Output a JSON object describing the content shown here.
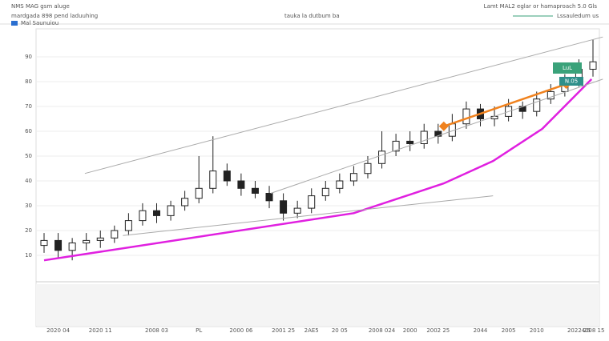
{
  "header": {
    "title": "NMS MAG gsm aluge",
    "subtitle": "mardgada 898 pend laduuhing",
    "center": "tauka la dutbum ba",
    "right": "Lamt MAL2 eglar or hamaproach 5.0 Gls",
    "legend_1": "Lssauledum us",
    "legend_2": "Mal Saunuiou"
  },
  "price_tags": [
    "LuL",
    "N.05"
  ],
  "chart_data": {
    "type": "candlestick",
    "categories": [
      null,
      "2020 04",
      null,
      null,
      "2020 11",
      null,
      null,
      null,
      "2008 03",
      null,
      null,
      "PL",
      null,
      null,
      "2000 06",
      null,
      null,
      "2001 25",
      null,
      "2AE5",
      null,
      "20 05",
      null,
      null,
      "2008 024",
      null,
      "2000",
      null,
      "2002 25",
      null,
      null,
      "2044",
      null,
      "2005",
      null,
      "2010",
      null,
      null,
      "2022 25",
      "4008 15"
    ],
    "open": [
      14,
      16,
      12,
      15,
      16,
      17,
      20,
      24,
      28,
      26,
      30,
      33,
      37,
      44,
      40,
      37,
      35,
      32,
      27,
      29,
      34,
      37,
      40,
      43,
      47,
      52,
      56,
      55,
      60,
      58,
      63,
      69,
      65,
      66,
      70,
      68,
      73,
      76,
      80,
      85
    ],
    "high": [
      19,
      19,
      17,
      19,
      20,
      22,
      27,
      31,
      31,
      32,
      36,
      50,
      58,
      47,
      43,
      40,
      38,
      35,
      32,
      37,
      40,
      43,
      46,
      50,
      60,
      59,
      60,
      63,
      63,
      67,
      72,
      71,
      70,
      73,
      72,
      76,
      79,
      83,
      89,
      97
    ],
    "low": [
      11,
      9,
      8,
      12,
      13,
      15,
      18,
      22,
      23,
      24,
      28,
      31,
      35,
      38,
      34,
      33,
      29,
      24,
      25,
      27,
      32,
      35,
      38,
      41,
      45,
      50,
      52,
      53,
      55,
      56,
      61,
      62,
      62,
      64,
      65,
      66,
      71,
      74,
      78,
      82
    ],
    "close": [
      16,
      12,
      15,
      16,
      17,
      20,
      24,
      28,
      26,
      30,
      33,
      37,
      44,
      40,
      37,
      35,
      32,
      27,
      29,
      34,
      37,
      40,
      43,
      47,
      52,
      56,
      55,
      60,
      58,
      63,
      69,
      65,
      66,
      70,
      68,
      73,
      76,
      80,
      85,
      88
    ],
    "up_color": "#ffffff",
    "down_color": "#222222",
    "wick_color": "#222222",
    "ylim": [
      0,
      100
    ],
    "yticks": [
      10,
      20,
      30,
      40,
      50,
      60,
      70,
      80,
      90
    ],
    "grid": true,
    "overlays": [
      {
        "color": "#e020e0",
        "markers": false,
        "x": [
          0,
          22,
          28.4,
          31.9,
          35.4,
          38.9
        ],
        "values": [
          8,
          27,
          39,
          48,
          61,
          81
        ]
      },
      {
        "color": "#f0821e",
        "markers": true,
        "x": [
          28.4,
          37.1
        ],
        "values": [
          62,
          79
        ]
      },
      {
        "color": "#aaaaaa",
        "markers": false,
        "x": [
          2.9,
          39.7
        ],
        "values": [
          43,
          98
        ]
      },
      {
        "color": "#aaaaaa",
        "markers": false,
        "x": [
          16.1,
          39.7
        ],
        "values": [
          35,
          81
        ]
      },
      {
        "color": "#aaaaaa",
        "markers": false,
        "x": [
          5.6,
          31.9
        ],
        "values": [
          18,
          34
        ]
      }
    ]
  }
}
